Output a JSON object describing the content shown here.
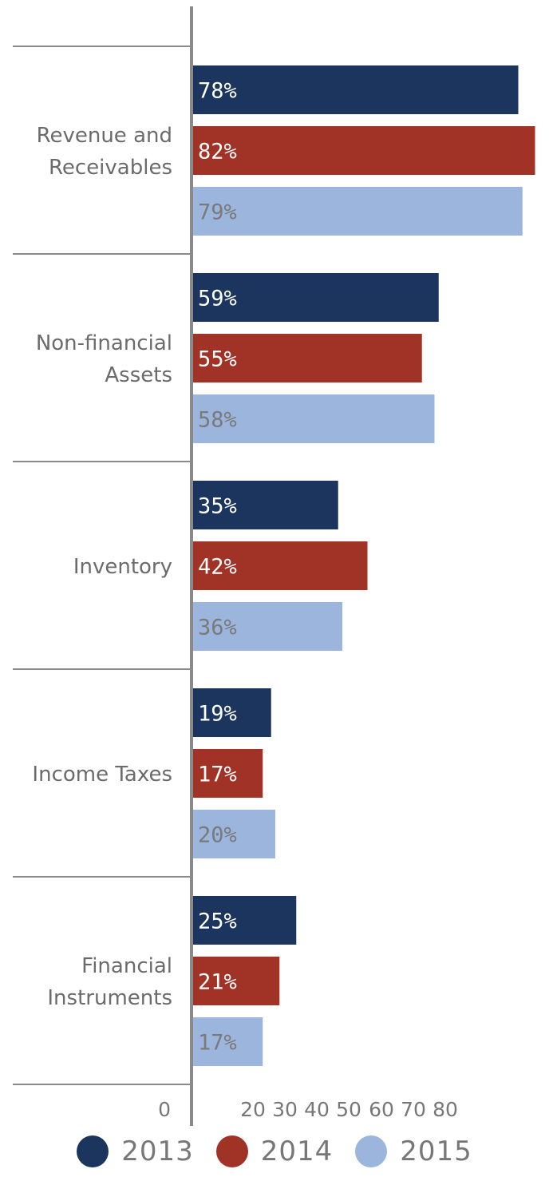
{
  "chart_data": {
    "type": "bar",
    "orientation": "horizontal",
    "categories": [
      [
        "Revenue and",
        "Receivables"
      ],
      [
        "Non-financial",
        "Assets"
      ],
      [
        "Inventory"
      ],
      [
        "Income Taxes"
      ],
      [
        "Financial",
        "Instruments"
      ]
    ],
    "series": [
      {
        "name": "2013",
        "color": "#1c355e",
        "label_color": "#ffffff",
        "values": [
          78,
          59,
          35,
          19,
          25
        ]
      },
      {
        "name": "2014",
        "color": "#a13226",
        "label_color": "#ffffff",
        "values": [
          82,
          55,
          42,
          17,
          21
        ]
      },
      {
        "name": "2015",
        "color": "#9bb5dc",
        "label_color": "#7a7a7a",
        "values": [
          79,
          58,
          36,
          20,
          17
        ]
      }
    ],
    "value_suffix": "%",
    "x_ticks": [
      0,
      20,
      30,
      40,
      50,
      60,
      70,
      80
    ],
    "xlim": [
      0,
      84
    ],
    "grid": false,
    "legend_position": "bottom"
  }
}
